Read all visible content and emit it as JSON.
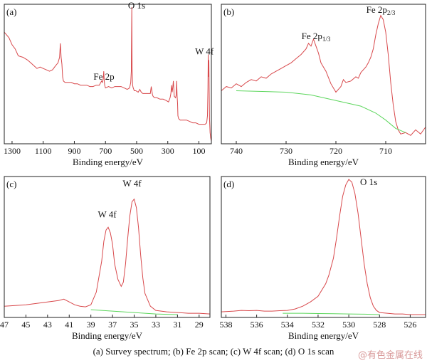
{
  "caption": "(a) Survey spectrum; (b) Fe 2p scan; (c) W 4f scan; (d) O 1s scan",
  "watermark": "@有色金属在线",
  "colors": {
    "spectrum": "#d8484b",
    "background": "#5cd65c",
    "axis": "#222222"
  },
  "chart_data": [
    {
      "panel": "(a)",
      "type": "line",
      "xlabel": "Binding energy/eV",
      "ylabel": "",
      "xlim": [
        1350,
        20
      ],
      "ylim": [
        0,
        100
      ],
      "xticks": [
        1300,
        1100,
        900,
        700,
        500,
        300,
        100
      ],
      "annotations": [
        {
          "text": "Fe 2p",
          "x": 710,
          "y": 46
        },
        {
          "text": "O 1s",
          "x": 500,
          "y": 97
        },
        {
          "text": "W 4f",
          "x": 65,
          "y": 64
        }
      ],
      "series": [
        {
          "role": "spectrum",
          "x": [
            1350,
            1320,
            1300,
            1280,
            1260,
            1230,
            1200,
            1180,
            1160,
            1140,
            1120,
            1100,
            1080,
            1060,
            1040,
            1020,
            1005,
            995,
            990,
            985,
            980,
            975,
            970,
            960,
            940,
            920,
            900,
            880,
            860,
            840,
            820,
            800,
            780,
            760,
            740,
            725,
            720,
            715,
            711,
            708,
            705,
            700,
            680,
            660,
            640,
            620,
            600,
            580,
            560,
            545,
            538,
            534,
            531,
            529,
            526,
            522,
            515,
            505,
            490,
            480,
            470,
            460,
            450,
            430,
            420,
            412,
            406,
            402,
            398,
            394,
            385,
            370,
            350,
            330,
            310,
            295,
            285,
            280,
            276,
            272,
            268,
            264,
            258,
            250,
            246,
            243,
            240,
            237,
            235,
            230,
            220,
            200,
            180,
            160,
            140,
            120,
            100,
            80,
            60,
            50,
            45,
            42,
            40,
            38,
            36,
            34,
            32,
            28,
            24,
            20
          ],
          "y": [
            80,
            76,
            71,
            68,
            63,
            62,
            60,
            58,
            56,
            54,
            55,
            54,
            53,
            52,
            53,
            56,
            58,
            62,
            72,
            62,
            57,
            48,
            45,
            44,
            44,
            44,
            43,
            43,
            42,
            42,
            42,
            41,
            41,
            42,
            42,
            45,
            44,
            46,
            52,
            45,
            42,
            40,
            41,
            40,
            41,
            41,
            41,
            40,
            39,
            40,
            44,
            52,
            98,
            55,
            42,
            40,
            38,
            38,
            37,
            39,
            37,
            36,
            36,
            36,
            36,
            36,
            41,
            38,
            35,
            34,
            33,
            33,
            32,
            32,
            31,
            30,
            33,
            36,
            42,
            37,
            40,
            45,
            34,
            33,
            35,
            45,
            34,
            29,
            20,
            18,
            17,
            17,
            17,
            16,
            15,
            15,
            14,
            14,
            14,
            15,
            20,
            40,
            64,
            48,
            60,
            40,
            18,
            8,
            4,
            2
          ]
        }
      ]
    },
    {
      "panel": "(b)",
      "type": "line",
      "xlabel": "Binding energy/eV",
      "ylabel": "",
      "xlim": [
        743,
        702
      ],
      "ylim": [
        0,
        100
      ],
      "xticks": [
        740,
        730,
        720,
        710
      ],
      "annotations": [
        {
          "text": "Fe 2p",
          "sub": "1/3",
          "x": 724,
          "y": 75
        },
        {
          "text": "Fe 2p",
          "sub": "2/3",
          "x": 711,
          "y": 94
        }
      ],
      "series": [
        {
          "role": "spectrum",
          "x": [
            743,
            742,
            741,
            740,
            739,
            738,
            737,
            736,
            735,
            734,
            733,
            732,
            731,
            730,
            729,
            728,
            727,
            726,
            725.5,
            725,
            724.5,
            724,
            723.5,
            723,
            722.5,
            722,
            721,
            720,
            719,
            718.5,
            718,
            717,
            716,
            715.5,
            715,
            714,
            713.5,
            713,
            712.5,
            712,
            711.5,
            711,
            710.5,
            710,
            709.5,
            709,
            708.5,
            708,
            707.5,
            707,
            706,
            705,
            704,
            703,
            702
          ],
          "y": [
            38,
            41,
            40,
            43,
            41,
            44,
            46,
            45,
            48,
            47,
            50,
            52,
            54,
            56,
            58,
            61,
            64,
            68,
            72,
            70,
            75,
            70,
            65,
            58,
            55,
            52,
            43,
            37,
            41,
            46,
            44,
            45,
            48,
            47,
            51,
            55,
            58,
            62,
            68,
            78,
            86,
            92,
            89,
            80,
            64,
            44,
            28,
            16,
            10,
            7,
            8,
            6,
            10,
            7,
            12
          ]
        },
        {
          "role": "background",
          "x": [
            740,
            730,
            725,
            720,
            715,
            712,
            710,
            708,
            706
          ],
          "y": [
            38,
            37,
            35,
            31,
            27,
            22,
            17,
            11,
            8
          ]
        }
      ]
    },
    {
      "panel": "(c)",
      "type": "line",
      "xlabel": "Binding energy/eV",
      "ylabel": "",
      "xlim": [
        47,
        28
      ],
      "ylim": [
        0,
        100
      ],
      "xticks": [
        47,
        45,
        43,
        41,
        39,
        37,
        35,
        33,
        31,
        29
      ],
      "annotations": [
        {
          "text": "W 4f",
          "x": 37.5,
          "y": 71
        },
        {
          "text": "W 4f",
          "x": 35.2,
          "y": 93
        }
      ],
      "series": [
        {
          "role": "spectrum",
          "x": [
            47,
            46,
            45,
            44,
            43,
            42,
            41.5,
            41,
            40.5,
            40,
            39.5,
            39,
            38.5,
            38,
            37.8,
            37.6,
            37.4,
            37.2,
            37,
            36.8,
            36.5,
            36.2,
            36,
            35.8,
            35.6,
            35.4,
            35.2,
            35,
            34.8,
            34.6,
            34.4,
            34.2,
            34,
            33.5,
            33,
            32,
            31,
            30,
            29,
            28
          ],
          "y": [
            8,
            8.5,
            9,
            10,
            11,
            12,
            13,
            11,
            9,
            8,
            7.5,
            9,
            18,
            40,
            54,
            62,
            64,
            60,
            52,
            38,
            27,
            22,
            25,
            38,
            56,
            72,
            82,
            84,
            78,
            64,
            44,
            28,
            17,
            8,
            5,
            4,
            3.5,
            3,
            3,
            2.5
          ]
        },
        {
          "role": "background",
          "x": [
            39,
            38,
            37,
            36,
            35,
            34,
            33,
            32,
            31
          ],
          "y": [
            5.5,
            5,
            4.5,
            4,
            3.5,
            3,
            2.5,
            2.2,
            2
          ]
        }
      ]
    },
    {
      "panel": "(d)",
      "type": "line",
      "xlabel": "Binding energy/eV",
      "ylabel": "",
      "xlim": [
        538.3,
        525
      ],
      "ylim": [
        0,
        100
      ],
      "xticks": [
        538,
        536,
        534,
        532,
        530,
        528,
        526
      ],
      "annotations": [
        {
          "text": "O 1s",
          "x": 528.7,
          "y": 94
        }
      ],
      "series": [
        {
          "role": "spectrum",
          "x": [
            538.3,
            537.5,
            537,
            536.5,
            536,
            535.5,
            535,
            534.5,
            534,
            533.5,
            533,
            532.5,
            532,
            531.5,
            531.3,
            531,
            530.8,
            530.6,
            530.4,
            530.2,
            530,
            529.8,
            529.6,
            529.4,
            529.2,
            529,
            528.8,
            528.6,
            528.4,
            528.2,
            528,
            527.5,
            527,
            526.5,
            526,
            525.5,
            525
          ],
          "y": [
            4,
            4.5,
            5,
            4.8,
            5,
            4.5,
            4.5,
            4.8,
            5,
            6,
            8,
            11,
            15,
            24,
            30,
            42,
            56,
            72,
            86,
            94,
            98,
            96,
            88,
            74,
            56,
            38,
            24,
            14,
            8,
            5,
            3.5,
            3,
            2.5,
            2.5,
            2,
            2,
            2
          ]
        },
        {
          "role": "background",
          "x": [
            534.3,
            533,
            532,
            531,
            530,
            529,
            528
          ],
          "y": [
            3,
            3,
            2.8,
            2.7,
            2.5,
            2.3,
            2
          ]
        }
      ]
    }
  ]
}
